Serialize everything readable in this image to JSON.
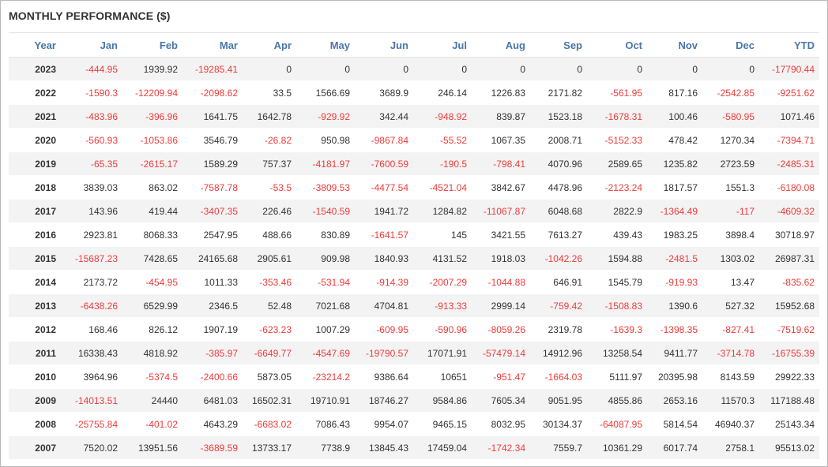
{
  "panel": {
    "title": "MONTHLY PERFORMANCE ($)"
  },
  "colors": {
    "header_text": "#4a76a8",
    "negative_text": "#ee3b3b",
    "positive_text": "#333333",
    "stripe": "#f3f3f3"
  },
  "table": {
    "columns": [
      "Year",
      "Jan",
      "Feb",
      "Mar",
      "Apr",
      "May",
      "Jun",
      "Jul",
      "Aug",
      "Sep",
      "Oct",
      "Nov",
      "Dec",
      "YTD"
    ],
    "rows": [
      [
        "2023",
        "-444.95",
        "1939.92",
        "-19285.41",
        "0",
        "0",
        "0",
        "0",
        "0",
        "0",
        "0",
        "0",
        "0",
        "-17790.44"
      ],
      [
        "2022",
        "-1590.3",
        "-12209.94",
        "-2098.62",
        "33.5",
        "1566.69",
        "3689.9",
        "246.14",
        "1226.83",
        "2171.82",
        "-561.95",
        "817.16",
        "-2542.85",
        "-9251.62"
      ],
      [
        "2021",
        "-483.96",
        "-396.96",
        "1641.75",
        "1642.78",
        "-929.92",
        "342.44",
        "-948.92",
        "839.87",
        "1523.18",
        "-1678.31",
        "100.46",
        "-580.95",
        "1071.46"
      ],
      [
        "2020",
        "-560.93",
        "-1053.86",
        "3546.79",
        "-26.82",
        "950.98",
        "-9867.84",
        "-55.52",
        "1067.35",
        "2008.71",
        "-5152.33",
        "478.42",
        "1270.34",
        "-7394.71"
      ],
      [
        "2019",
        "-65.35",
        "-2615.17",
        "1589.29",
        "757.37",
        "-4181.97",
        "-7600.59",
        "-190.5",
        "-798.41",
        "4070.96",
        "2589.65",
        "1235.82",
        "2723.59",
        "-2485.31"
      ],
      [
        "2018",
        "3839.03",
        "863.02",
        "-7587.78",
        "-53.5",
        "-3809.53",
        "-4477.54",
        "-4521.04",
        "3842.67",
        "4478.96",
        "-2123.24",
        "1817.57",
        "1551.3",
        "-6180.08"
      ],
      [
        "2017",
        "143.96",
        "419.44",
        "-3407.35",
        "226.46",
        "-1540.59",
        "1941.72",
        "1284.82",
        "-11067.87",
        "6048.68",
        "2822.9",
        "-1364.49",
        "-117",
        "-4609.32"
      ],
      [
        "2016",
        "2923.81",
        "8068.33",
        "2547.95",
        "488.66",
        "830.89",
        "-1641.57",
        "145",
        "3421.55",
        "7613.27",
        "439.43",
        "1983.25",
        "3898.4",
        "30718.97"
      ],
      [
        "2015",
        "-15687.23",
        "7428.65",
        "24165.68",
        "2905.61",
        "909.98",
        "1840.93",
        "4131.52",
        "1918.03",
        "-1042.26",
        "1594.88",
        "-2481.5",
        "1303.02",
        "26987.31"
      ],
      [
        "2014",
        "2173.72",
        "-454.95",
        "1011.33",
        "-353.46",
        "-531.94",
        "-914.39",
        "-2007.29",
        "-1044.88",
        "646.91",
        "1545.79",
        "-919.93",
        "13.47",
        "-835.62"
      ],
      [
        "2013",
        "-6438.26",
        "6529.99",
        "2346.5",
        "52.48",
        "7021.68",
        "4704.81",
        "-913.33",
        "2999.14",
        "-759.42",
        "-1508.83",
        "1390.6",
        "527.32",
        "15952.68"
      ],
      [
        "2012",
        "168.46",
        "826.12",
        "1907.19",
        "-623.23",
        "1007.29",
        "-609.95",
        "-590.96",
        "-8059.26",
        "2319.78",
        "-1639.3",
        "-1398.35",
        "-827.41",
        "-7519.62"
      ],
      [
        "2011",
        "16338.43",
        "4818.92",
        "-385.97",
        "-6649.77",
        "-4547.69",
        "-19790.57",
        "17071.91",
        "-57479.14",
        "14912.96",
        "13258.54",
        "9411.77",
        "-3714.78",
        "-16755.39"
      ],
      [
        "2010",
        "3964.96",
        "-5374.5",
        "-2400.66",
        "5873.05",
        "-23214.2",
        "9386.64",
        "10651",
        "-951.47",
        "-1664.03",
        "5111.97",
        "20395.98",
        "8143.59",
        "29922.33"
      ],
      [
        "2009",
        "-14013.51",
        "24440",
        "6481.03",
        "16502.31",
        "19710.91",
        "18746.27",
        "9584.86",
        "7605.34",
        "9051.95",
        "4855.86",
        "2653.16",
        "11570.3",
        "117188.48"
      ],
      [
        "2008",
        "-25755.84",
        "-401.02",
        "4643.29",
        "-6683.02",
        "7086.43",
        "9954.07",
        "9465.15",
        "8032.95",
        "30134.37",
        "-64087.95",
        "5814.54",
        "46940.37",
        "25143.34"
      ],
      [
        "2007",
        "7520.02",
        "13951.56",
        "-3689.59",
        "13733.17",
        "7738.9",
        "13845.43",
        "17459.04",
        "-1742.34",
        "7559.7",
        "10361.29",
        "6017.74",
        "2758.1",
        "95513.02"
      ]
    ]
  }
}
